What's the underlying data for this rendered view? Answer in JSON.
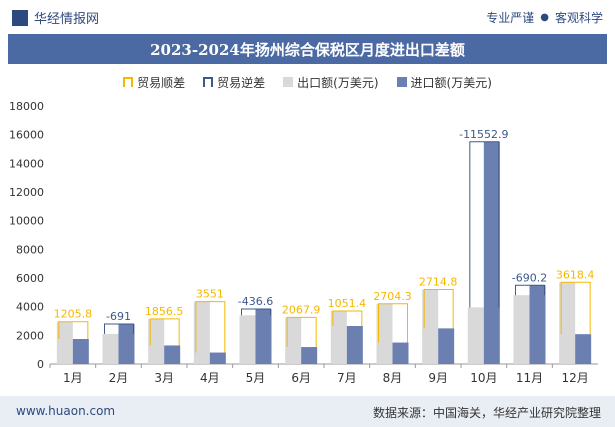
{
  "header": {
    "brand": "华经情报网",
    "slogan_left": "专业严谨",
    "slogan_right": "客观科学"
  },
  "footer": {
    "website": "www.huaon.com",
    "source": "数据来源：中国海关，华经产业研究院整理"
  },
  "colors": {
    "export": "#d9d9d9",
    "import": "#6b7fb0",
    "surplus": "#f5b800",
    "deficit": "#3d5a8a",
    "title_bg": "#4b6aa3"
  },
  "chart_data": {
    "type": "bar",
    "title": "2023-2024年扬州综合保税区月度进出口差额",
    "categories": [
      "1月",
      "2月",
      "3月",
      "4月",
      "5月",
      "6月",
      "7月",
      "8月",
      "9月",
      "10月",
      "11月",
      "12月"
    ],
    "series": [
      {
        "name": "出口额(万美元)",
        "values": [
          2950,
          2100,
          3150,
          4350,
          3400,
          3250,
          3700,
          4200,
          5200,
          3950,
          4800,
          5700
        ]
      },
      {
        "name": "进口额(万美元)",
        "values": [
          1744,
          2791,
          1293,
          799,
          3837,
          1182,
          2649,
          1496,
          2485,
          15503,
          5490,
          2082
        ]
      }
    ],
    "balance": {
      "surplus_name": "贸易顺差",
      "deficit_name": "贸易逆差",
      "values": [
        1205.8,
        -691,
        1856.5,
        3551,
        -436.6,
        2067.9,
        1051.4,
        2704.3,
        2714.8,
        -11552.9,
        -690.2,
        3618.4
      ],
      "labels": [
        "1205.8",
        "-691",
        "1856.5",
        "3551",
        "-436.6",
        "2067.9",
        "1051.4",
        "2704.3",
        "2714.8",
        "-11552.9",
        "-690.2",
        "3618.4"
      ]
    },
    "ylim": [
      0,
      18000
    ],
    "yticks": [
      0,
      2000,
      4000,
      6000,
      8000,
      10000,
      12000,
      14000,
      16000,
      18000
    ],
    "grid": false,
    "legend_position": "top-center"
  }
}
